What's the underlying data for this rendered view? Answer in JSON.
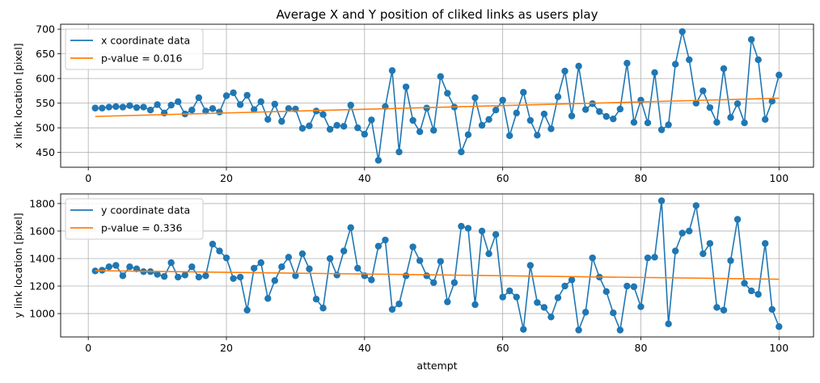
{
  "chart_data": [
    {
      "type": "line",
      "title": "Average X and Y position of cliked links as users play",
      "xlabel": "",
      "ylabel": "x link location [pixel]",
      "xlim": [
        -4,
        105
      ],
      "ylim": [
        420,
        710
      ],
      "xticks": [
        0,
        20,
        40,
        60,
        80,
        100
      ],
      "yticks": [
        450,
        500,
        550,
        600,
        650,
        700
      ],
      "grid": true,
      "legend_position": "top-left",
      "series": [
        {
          "name": "x coordinate data",
          "color": "#1f77b4",
          "markers": true,
          "x": [
            1,
            2,
            3,
            4,
            5,
            6,
            7,
            8,
            9,
            10,
            11,
            12,
            13,
            14,
            15,
            16,
            17,
            18,
            19,
            20,
            21,
            22,
            23,
            24,
            25,
            26,
            27,
            28,
            29,
            30,
            31,
            32,
            33,
            34,
            35,
            36,
            37,
            38,
            39,
            40,
            41,
            42,
            43,
            44,
            45,
            46,
            47,
            48,
            49,
            50,
            51,
            52,
            53,
            54,
            55,
            56,
            57,
            58,
            59,
            60,
            61,
            62,
            63,
            64,
            65,
            66,
            67,
            68,
            69,
            70,
            71,
            72,
            73,
            74,
            75,
            76,
            77,
            78,
            79,
            80,
            81,
            82,
            83,
            84,
            85,
            86,
            87,
            88,
            89,
            90,
            91,
            92,
            93,
            94,
            95,
            96,
            97,
            98,
            99,
            100
          ],
          "values": [
            540,
            540,
            542,
            543,
            542,
            545,
            541,
            542,
            536,
            547,
            530,
            546,
            553,
            528,
            536,
            561,
            534,
            539,
            532,
            565,
            571,
            547,
            566,
            537,
            553,
            517,
            548,
            513,
            539,
            538,
            499,
            504,
            534,
            527,
            497,
            505,
            503,
            546,
            500,
            487,
            516,
            434,
            543,
            616,
            451,
            583,
            515,
            492,
            540,
            495,
            604,
            570,
            542,
            451,
            486,
            561,
            505,
            517,
            536,
            556,
            484,
            530,
            572,
            515,
            485,
            528,
            498,
            563,
            615,
            524,
            625,
            537,
            549,
            533,
            523,
            518,
            538,
            631,
            511,
            556,
            510,
            612,
            496,
            506,
            629,
            695,
            638,
            550,
            575,
            541,
            511,
            620,
            521,
            549,
            510,
            679,
            638,
            517,
            554,
            607
          ]
        },
        {
          "name": "p-value = 0.016",
          "color": "#ff7f0e",
          "markers": false,
          "x": [
            1,
            100
          ],
          "values": [
            523,
            560
          ]
        }
      ]
    },
    {
      "type": "line",
      "title": "",
      "xlabel": "attempt",
      "ylabel": "y link location [pixel]",
      "xlim": [
        -4,
        105
      ],
      "ylim": [
        830,
        1870
      ],
      "xticks": [
        0,
        20,
        40,
        60,
        80,
        100
      ],
      "yticks": [
        1000,
        1200,
        1400,
        1600,
        1800
      ],
      "grid": true,
      "legend_position": "top-left",
      "series": [
        {
          "name": "y coordinate data",
          "color": "#1f77b4",
          "markers": true,
          "x": [
            1,
            2,
            3,
            4,
            5,
            6,
            7,
            8,
            9,
            10,
            11,
            12,
            13,
            14,
            15,
            16,
            17,
            18,
            19,
            20,
            21,
            22,
            23,
            24,
            25,
            26,
            27,
            28,
            29,
            30,
            31,
            32,
            33,
            34,
            35,
            36,
            37,
            38,
            39,
            40,
            41,
            42,
            43,
            44,
            45,
            46,
            47,
            48,
            49,
            50,
            51,
            52,
            53,
            54,
            55,
            56,
            57,
            58,
            59,
            60,
            61,
            62,
            63,
            64,
            65,
            66,
            67,
            68,
            69,
            70,
            71,
            72,
            73,
            74,
            75,
            76,
            77,
            78,
            79,
            80,
            81,
            82,
            83,
            84,
            85,
            86,
            87,
            88,
            89,
            90,
            91,
            92,
            93,
            94,
            95,
            96,
            97,
            98,
            99,
            100
          ],
          "values": [
            1310,
            1315,
            1340,
            1350,
            1275,
            1340,
            1325,
            1305,
            1305,
            1285,
            1270,
            1370,
            1265,
            1280,
            1340,
            1265,
            1275,
            1505,
            1455,
            1405,
            1255,
            1265,
            1025,
            1330,
            1370,
            1110,
            1240,
            1340,
            1410,
            1275,
            1435,
            1325,
            1105,
            1040,
            1400,
            1280,
            1455,
            1625,
            1330,
            1275,
            1245,
            1490,
            1535,
            1030,
            1070,
            1275,
            1485,
            1385,
            1275,
            1225,
            1380,
            1085,
            1225,
            1635,
            1620,
            1065,
            1600,
            1435,
            1575,
            1120,
            1165,
            1120,
            885,
            1350,
            1080,
            1045,
            975,
            1115,
            1200,
            1245,
            880,
            1010,
            1405,
            1265,
            1160,
            1005,
            880,
            1200,
            1195,
            1050,
            1405,
            1410,
            1820,
            925,
            1455,
            1585,
            1600,
            1785,
            1435,
            1510,
            1045,
            1025,
            1385,
            1685,
            1220,
            1165,
            1140,
            1510,
            1030,
            905
          ]
        },
        {
          "name": "p-value = 0.336",
          "color": "#ff7f0e",
          "markers": false,
          "x": [
            1,
            100
          ],
          "values": [
            1312,
            1250
          ]
        }
      ]
    }
  ]
}
